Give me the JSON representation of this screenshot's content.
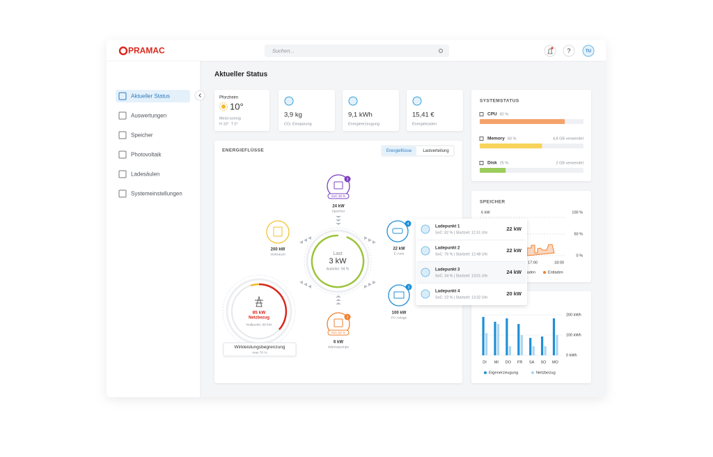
{
  "header": {
    "logo": "PRAMAC",
    "search_placeholder": "Suchen...",
    "user_initials": "TU"
  },
  "sidebar": {
    "items": [
      "Aktueller Status",
      "Auswertungen",
      "Speicher",
      "Photovoltaik",
      "Ladesäulen",
      "Systemeinstellungen"
    ]
  },
  "page_title": "Aktueller Status",
  "weather": {
    "city": "Pforzheim",
    "temperature": "10°",
    "condition": "Meist sonnig",
    "high_low": "H 10°  T 5°"
  },
  "kpis": [
    {
      "value": "3,9 kg",
      "label": "CO₂ Einsparung"
    },
    {
      "value": "9,1 kWh",
      "label": "Energieerzeugung"
    },
    {
      "value": "15,41 €",
      "label": "Energiekosten"
    }
  ],
  "energy_flow": {
    "title": "ENERGIEFLÜSSE",
    "tabs": [
      "Energieflüsse",
      "Lastverteilung"
    ],
    "center": {
      "label": "Last",
      "value": "3 kW",
      "autarky": "Autarkie: 94 %"
    },
    "nodes": [
      {
        "badge": "3",
        "soc": "SoC 45 %",
        "value": "24 kW",
        "label": "Speicher"
      },
      {
        "value": "200 kW",
        "label": "Verbrauch"
      },
      {
        "badge": "4",
        "value": "22 kW",
        "label": "E-Auto"
      },
      {
        "badge": "3",
        "value": "100 kW",
        "label": "PV Anlage"
      },
      {
        "badge": "2",
        "soc": "SoC 82 %",
        "value": "6 kW",
        "label": "Wärmepumpe"
      }
    ],
    "grid": {
      "value": "85 kW",
      "label": "Netzbezug",
      "zero_point": "Nullpunkt: 98 kW"
    },
    "limit": {
      "label": "Wirkleistungsbegrenzung",
      "value": "max 70 %"
    }
  },
  "charging_points": [
    {
      "name": "Ladepunkt 1",
      "details": "SoC: 82 % | Startzeit: 12:31 Uhr",
      "power": "22 kW"
    },
    {
      "name": "Ladepunkt 2",
      "details": "SoC: 76 % | Startzeit: 12:48 Uhr",
      "power": "22 kW"
    },
    {
      "name": "Ladepunkt 3",
      "details": "SoC: 34 % | Startzeit: 13:01 Uhr",
      "power": "24 kW"
    },
    {
      "name": "Ladepunkt 4",
      "details": "SoC: 23 % | Startzeit: 13:32 Uhr",
      "power": "20 kW"
    }
  ],
  "system_status": {
    "title": "SYSTEMSTATUS",
    "items": [
      {
        "name": "CPU",
        "value": 82,
        "value_label": "82 %",
        "color": "#f5a26b"
      },
      {
        "name": "Memory",
        "value": 60,
        "value_label": "60 %",
        "detail": "4,8 GB verwendet",
        "color": "#f7d35a"
      },
      {
        "name": "Disk",
        "value": 25,
        "value_label": "25 %",
        "detail": "2 GB verwendet",
        "color": "#9ccc5c"
      }
    ]
  },
  "storage": {
    "title": "SPEICHER",
    "left_axis_label": "6 kW",
    "right_axis_labels": [
      "100 %",
      "50 %",
      "0 %"
    ],
    "x_labels": [
      "17:00",
      "18:00"
    ],
    "legend": [
      "Laden",
      "Entladen"
    ]
  },
  "chart_data": {
    "type": "bar",
    "categories": [
      "DI",
      "MI",
      "DO",
      "FR",
      "SA",
      "SO",
      "MO"
    ],
    "series": [
      {
        "name": "Eigenerzeugung",
        "color": "#1f8fd6",
        "values": [
          190,
          166,
          183,
          155,
          86,
          93,
          183
        ]
      },
      {
        "name": "Netzbezug",
        "color": "#a9d5f1",
        "values": [
          110,
          155,
          45,
          100,
          45,
          45,
          100
        ]
      }
    ],
    "ylim": [
      0,
      200
    ],
    "yticks": [
      {
        "value": 0,
        "label": "0 kWh"
      },
      {
        "value": 100,
        "label": "100 kWh"
      },
      {
        "value": 200,
        "label": "200 kWh"
      }
    ]
  }
}
